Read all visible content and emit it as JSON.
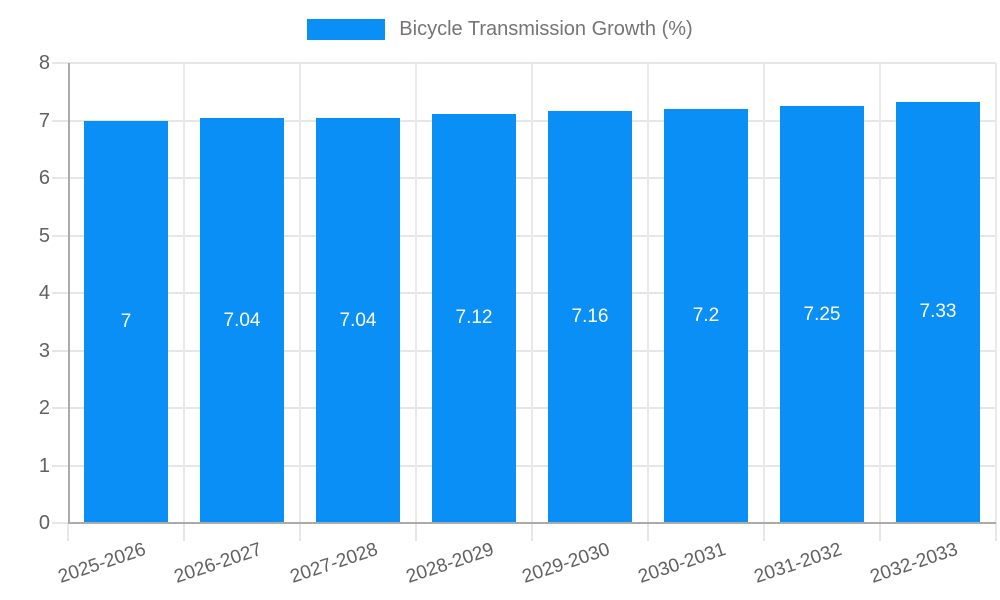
{
  "chart_data": {
    "type": "bar",
    "title": "",
    "legend_position": "top",
    "categories": [
      "2025-2026",
      "2026-2027",
      "2027-2028",
      "2028-2029",
      "2029-2030",
      "2030-2031",
      "2031-2032",
      "2032-2033"
    ],
    "series": [
      {
        "name": "Bicycle Transmission Growth (%)",
        "values": [
          7,
          7.04,
          7.04,
          7.12,
          7.16,
          7.2,
          7.25,
          7.33
        ],
        "value_labels": [
          "7",
          "7.04",
          "7.04",
          "7.12",
          "7.16",
          "7.2",
          "7.25",
          "7.33"
        ],
        "color": "#0a8ff7"
      }
    ],
    "xlabel": "",
    "ylabel": "",
    "ylim": [
      0,
      8
    ],
    "yticks": [
      0,
      1,
      2,
      3,
      4,
      5,
      6,
      7,
      8
    ],
    "grid": true,
    "colors": {
      "bar": "#0a8ff7",
      "axis": "#ababab",
      "grid": "#e6e6e6",
      "tick_label": "#616161",
      "bar_label": "#ffffff",
      "legend_text": "#757575",
      "background": "#ffffff"
    }
  }
}
